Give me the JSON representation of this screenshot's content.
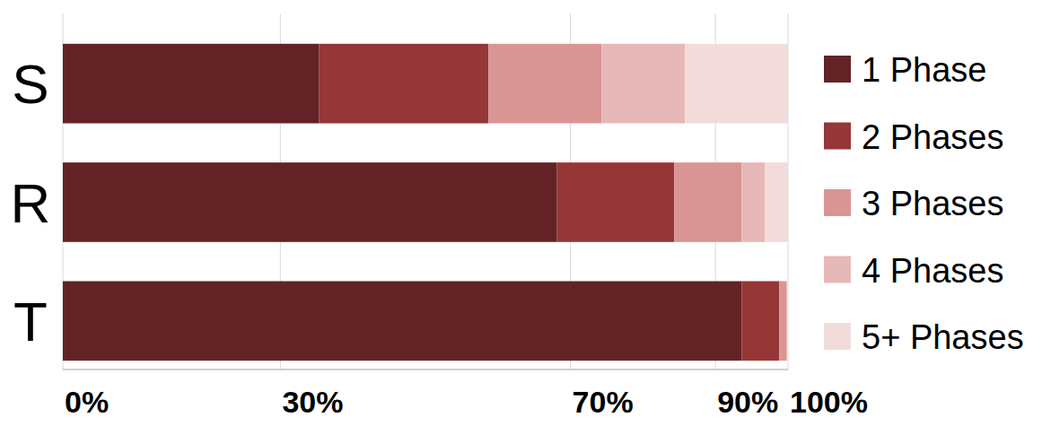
{
  "chart_data": {
    "type": "bar",
    "orientation": "horizontal",
    "stacked": true,
    "categories": [
      "S",
      "R",
      "T"
    ],
    "series": [
      {
        "name": "1 Phase",
        "color": "#632326",
        "values": [
          35.3,
          68.1,
          93.6
        ]
      },
      {
        "name": "2 Phases",
        "color": "#963637",
        "values": [
          23.4,
          16.2,
          5.2
        ]
      },
      {
        "name": "3 Phases",
        "color": "#d99594",
        "values": [
          15.6,
          9.3,
          1.0
        ]
      },
      {
        "name": "4 Phases",
        "color": "#e6b8b7",
        "values": [
          11.5,
          3.2,
          0.1
        ]
      },
      {
        "name": "5+ Phases",
        "color": "#f2dcdb",
        "values": [
          14.2,
          3.2,
          0.1
        ]
      }
    ],
    "xlim": [
      0,
      100
    ],
    "xticks": [
      {
        "value": 0,
        "label": "0%"
      },
      {
        "value": 30,
        "label": "30%"
      },
      {
        "value": 70,
        "label": "70%"
      },
      {
        "value": 90,
        "label": "90%"
      },
      {
        "value": 100,
        "label": "100%"
      }
    ],
    "grid": true,
    "legend": "right"
  }
}
